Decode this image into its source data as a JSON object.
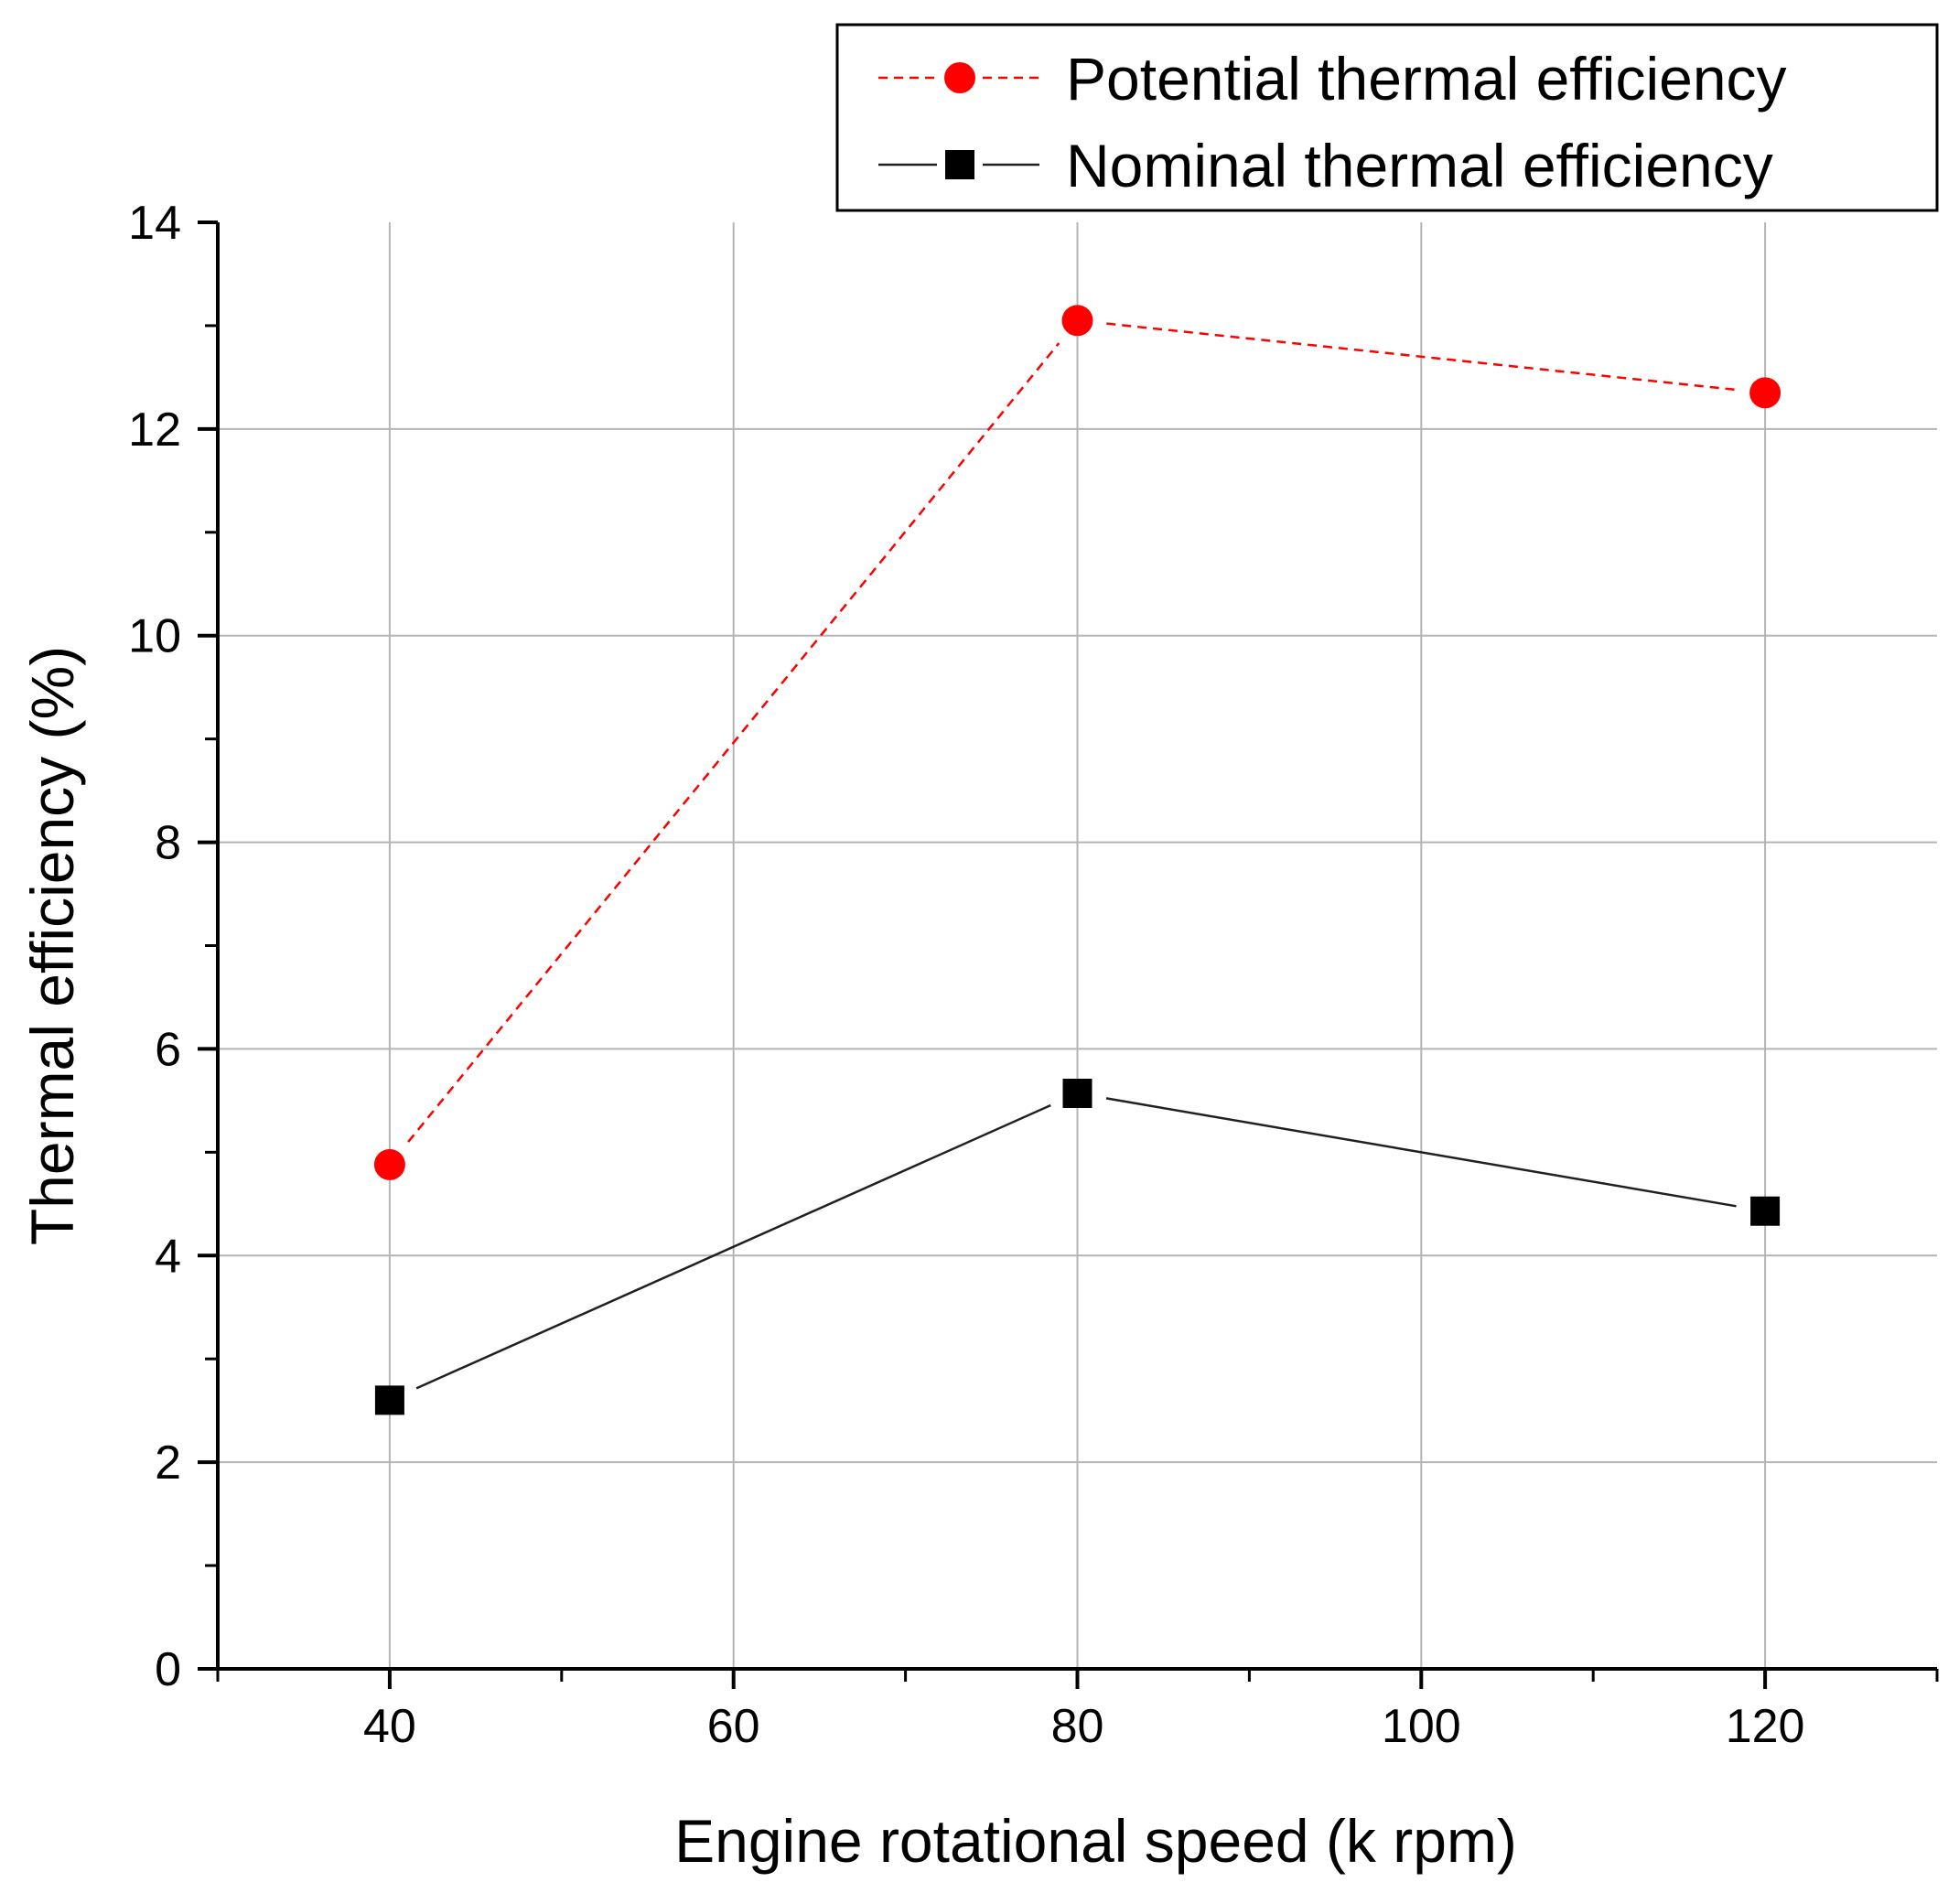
{
  "chart_data": {
    "type": "line",
    "title": "",
    "xlabel": "Engine rotational speed (k rpm)",
    "ylabel": "Thermal efficiency (%)",
    "xlim": [
      30,
      130
    ],
    "ylim": [
      0,
      14
    ],
    "x_ticks": [
      40,
      60,
      80,
      100,
      120
    ],
    "x_minor_ticks": [
      30,
      50,
      70,
      90,
      110,
      130
    ],
    "y_ticks": [
      0,
      2,
      4,
      6,
      8,
      10,
      12,
      14
    ],
    "y_minor_ticks": [
      1,
      3,
      5,
      7,
      9,
      11,
      13
    ],
    "grid": true,
    "legend_position": "top-right",
    "series": [
      {
        "name": "Potential thermal efficiency",
        "color": "#ff0000",
        "line_style": "dashed",
        "marker": "circle",
        "x": [
          40,
          80,
          120
        ],
        "values": [
          4.88,
          13.05,
          12.35
        ]
      },
      {
        "name": "Nominal thermal efficiency",
        "color": "#000000",
        "line_style": "solid",
        "marker": "square",
        "x": [
          40,
          80,
          120
        ],
        "values": [
          2.6,
          5.57,
          4.43
        ]
      }
    ]
  }
}
